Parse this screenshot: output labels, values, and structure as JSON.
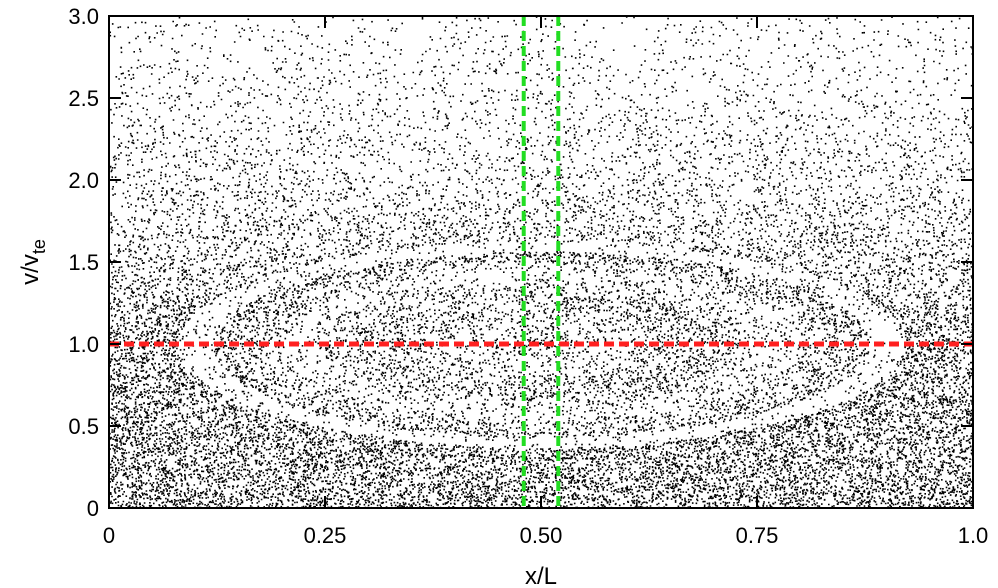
{
  "chart_data": {
    "type": "scatter",
    "xlabel": "x/L",
    "ylabel_main": "v/v",
    "ylabel_sub": "te",
    "xlim": [
      0,
      1.0
    ],
    "ylim": [
      0,
      3.0
    ],
    "x_ticks": [
      {
        "value": 0,
        "label": "0"
      },
      {
        "value": 0.25,
        "label": "0.25"
      },
      {
        "value": 0.5,
        "label": "0.50"
      },
      {
        "value": 0.75,
        "label": "0.75"
      },
      {
        "value": 1.0,
        "label": "1.0"
      }
    ],
    "y_ticks": [
      {
        "value": 0,
        "label": "0"
      },
      {
        "value": 0.5,
        "label": "0.5"
      },
      {
        "value": 1.0,
        "label": "1.0"
      },
      {
        "value": 1.5,
        "label": "1.5"
      },
      {
        "value": 2.0,
        "label": "2.0"
      },
      {
        "value": 2.5,
        "label": "2.5"
      },
      {
        "value": 3.0,
        "label": "3.0"
      }
    ],
    "phase_space": {
      "marker_color": "#000000",
      "background_density": "decreasing with v",
      "island_center": [
        0.5,
        1.0
      ],
      "island_half_width": 0.4,
      "island_half_height": 0.6
    },
    "reference_lines": [
      {
        "orientation": "horizontal",
        "value": 1.0,
        "color": "#ff2020",
        "style": "dashed"
      },
      {
        "orientation": "vertical",
        "value": 0.48,
        "color": "#22dd22",
        "style": "dashed"
      },
      {
        "orientation": "vertical",
        "value": 0.52,
        "color": "#22dd22",
        "style": "dashed"
      }
    ]
  }
}
